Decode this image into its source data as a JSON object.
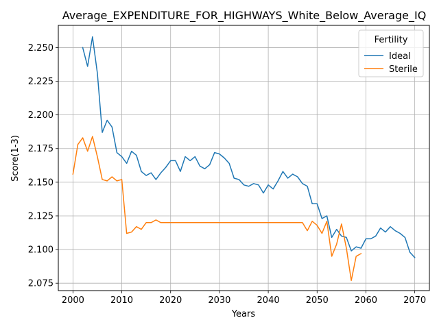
{
  "chart_data": {
    "type": "line",
    "title": "Average_EXPENDITURE_FOR_HIGHWAYS_White_Below_Average_IQ",
    "xlabel": "Years",
    "ylabel": "Score(1-3)",
    "xlim": [
      1997,
      2073
    ],
    "ylim": [
      2.0695,
      2.2665
    ],
    "xticks": [
      2000,
      2010,
      2020,
      2030,
      2040,
      2050,
      2060,
      2070
    ],
    "yticks": [
      2.075,
      2.1,
      2.125,
      2.15,
      2.175,
      2.2,
      2.225,
      2.25
    ],
    "ytick_format": "3 decimals",
    "grid": true,
    "legend": {
      "title": "Fertility",
      "placement": "top-right"
    },
    "series": [
      {
        "name": "Ideal",
        "color": "#1f77b4",
        "x": [
          2002,
          2003,
          2004,
          2005,
          2006,
          2007,
          2008,
          2009,
          2010,
          2011,
          2012,
          2013,
          2014,
          2015,
          2016,
          2017,
          2018,
          2019,
          2020,
          2021,
          2022,
          2023,
          2024,
          2025,
          2026,
          2027,
          2028,
          2029,
          2030,
          2031,
          2032,
          2033,
          2034,
          2035,
          2036,
          2037,
          2038,
          2039,
          2040,
          2041,
          2042,
          2043,
          2044,
          2045,
          2046,
          2047,
          2048,
          2049,
          2050,
          2051,
          2052,
          2053,
          2054,
          2055,
          2056,
          2057,
          2058,
          2059,
          2060,
          2061,
          2062,
          2063,
          2064,
          2065,
          2066,
          2067,
          2068,
          2069,
          2070
        ],
        "values": [
          2.25,
          2.236,
          2.258,
          2.231,
          2.187,
          2.196,
          2.191,
          2.172,
          2.169,
          2.164,
          2.173,
          2.17,
          2.158,
          2.155,
          2.157,
          2.152,
          2.157,
          2.161,
          2.166,
          2.166,
          2.158,
          2.169,
          2.166,
          2.169,
          2.162,
          2.16,
          2.163,
          2.172,
          2.171,
          2.168,
          2.164,
          2.153,
          2.152,
          2.148,
          2.147,
          2.149,
          2.148,
          2.142,
          2.148,
          2.145,
          2.151,
          2.158,
          2.153,
          2.156,
          2.154,
          2.149,
          2.147,
          2.134,
          2.134,
          2.123,
          2.125,
          2.109,
          2.115,
          2.11,
          2.109,
          2.099,
          2.102,
          2.101,
          2.108,
          2.108,
          2.11,
          2.116,
          2.113,
          2.117,
          2.114,
          2.112,
          2.109,
          2.098,
          2.094
        ]
      },
      {
        "name": "Sterile",
        "color": "#ff7f0e",
        "x": [
          2000,
          2001,
          2002,
          2003,
          2004,
          2005,
          2006,
          2007,
          2008,
          2009,
          2010,
          2011,
          2012,
          2013,
          2014,
          2015,
          2016,
          2017,
          2018,
          2019,
          2020,
          2021,
          2022,
          2023,
          2024,
          2025,
          2026,
          2027,
          2028,
          2029,
          2030,
          2031,
          2032,
          2033,
          2034,
          2035,
          2036,
          2037,
          2038,
          2039,
          2040,
          2041,
          2042,
          2043,
          2044,
          2045,
          2046,
          2047,
          2048,
          2049,
          2050,
          2051,
          2052,
          2053,
          2054,
          2055,
          2056,
          2057,
          2058,
          2059
        ],
        "values": [
          2.156,
          2.178,
          2.183,
          2.173,
          2.184,
          2.169,
          2.152,
          2.151,
          2.154,
          2.151,
          2.152,
          2.112,
          2.113,
          2.117,
          2.115,
          2.12,
          2.12,
          2.122,
          2.12,
          2.12,
          2.12,
          2.12,
          2.12,
          2.12,
          2.12,
          2.12,
          2.12,
          2.12,
          2.12,
          2.12,
          2.12,
          2.12,
          2.12,
          2.12,
          2.12,
          2.12,
          2.12,
          2.12,
          2.12,
          2.12,
          2.12,
          2.12,
          2.12,
          2.12,
          2.12,
          2.12,
          2.12,
          2.12,
          2.114,
          2.121,
          2.118,
          2.112,
          2.121,
          2.095,
          2.104,
          2.119,
          2.101,
          2.077,
          2.095,
          2.097
        ]
      }
    ]
  }
}
